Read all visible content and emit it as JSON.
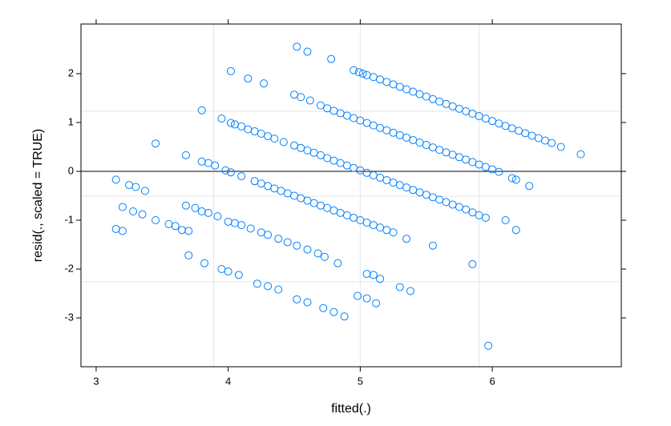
{
  "chart_data": {
    "type": "scatter",
    "xlabel": "fitted(.)",
    "ylabel": "resid(., scaled = TRUE)",
    "xlim": [
      2.885,
      6.977
    ],
    "ylim": [
      -4.0,
      3.016
    ],
    "xticks": [
      3,
      4,
      5,
      6
    ],
    "yticks": [
      -3,
      -2,
      -1,
      0,
      1,
      2
    ],
    "color": "#0080ff",
    "reference_line": 0,
    "grid_x": [
      3.89,
      5.0,
      5.9
    ],
    "grid_y": [
      1.23,
      -0.51,
      -2.26
    ],
    "x": [
      4.52,
      4.6,
      4.78,
      4.95,
      4.99,
      5.02,
      5.05,
      5.1,
      5.15,
      5.2,
      5.25,
      5.3,
      5.35,
      5.4,
      5.45,
      5.5,
      5.55,
      5.6,
      5.65,
      5.7,
      5.75,
      5.8,
      5.85,
      5.9,
      5.95,
      6.0,
      6.05,
      6.1,
      6.15,
      6.2,
      6.25,
      6.3,
      6.35,
      6.4,
      6.45,
      6.52,
      6.67,
      4.02,
      4.15,
      4.27,
      4.5,
      4.55,
      4.62,
      4.7,
      4.75,
      4.8,
      4.85,
      4.9,
      4.95,
      5.0,
      5.05,
      5.1,
      5.15,
      5.2,
      5.25,
      5.3,
      5.35,
      5.4,
      5.45,
      5.5,
      5.55,
      5.6,
      5.65,
      5.7,
      5.75,
      5.8,
      5.85,
      5.9,
      5.95,
      6.0,
      6.05,
      6.15,
      6.18,
      6.28,
      3.8,
      3.95,
      4.02,
      4.05,
      4.1,
      4.15,
      4.2,
      4.25,
      4.3,
      4.35,
      4.42,
      4.5,
      4.55,
      4.6,
      4.65,
      4.7,
      4.75,
      4.8,
      4.85,
      4.9,
      4.95,
      5.0,
      5.05,
      5.1,
      5.15,
      5.2,
      5.25,
      5.3,
      5.35,
      5.4,
      5.45,
      5.5,
      5.55,
      5.6,
      5.65,
      5.7,
      5.75,
      5.8,
      5.85,
      5.9,
      5.95,
      6.1,
      6.18,
      3.45,
      3.68,
      3.8,
      3.85,
      3.9,
      3.98,
      4.02,
      4.1,
      4.2,
      4.25,
      4.3,
      4.35,
      4.4,
      4.45,
      4.5,
      4.55,
      4.6,
      4.65,
      4.7,
      4.75,
      4.8,
      4.85,
      4.9,
      4.95,
      5.0,
      5.05,
      5.1,
      5.15,
      5.2,
      5.25,
      5.35,
      5.55,
      5.85,
      3.15,
      3.25,
      3.3,
      3.37,
      3.68,
      3.75,
      3.8,
      3.85,
      3.92,
      4.0,
      4.05,
      4.1,
      4.17,
      4.25,
      4.3,
      4.38,
      4.45,
      4.52,
      4.6,
      4.68,
      4.73,
      4.83,
      5.05,
      5.1,
      5.15,
      5.3,
      5.38,
      3.15,
      3.2,
      3.2,
      3.28,
      3.35,
      3.45,
      3.55,
      3.6,
      3.65,
      3.7,
      3.7,
      3.82,
      3.95,
      4.0,
      4.08,
      4.22,
      4.3,
      4.38,
      4.52,
      4.6,
      4.72,
      4.8,
      4.88,
      4.98,
      5.05,
      5.12,
      5.97
    ],
    "values": [
      2.55,
      2.45,
      2.3,
      2.07,
      2.03,
      2.0,
      1.97,
      1.93,
      1.88,
      1.83,
      1.78,
      1.73,
      1.68,
      1.63,
      1.58,
      1.53,
      1.48,
      1.43,
      1.38,
      1.33,
      1.28,
      1.23,
      1.18,
      1.13,
      1.08,
      1.03,
      0.98,
      0.93,
      0.88,
      0.83,
      0.78,
      0.73,
      0.68,
      0.63,
      0.58,
      0.5,
      0.35,
      2.05,
      1.9,
      1.8,
      1.57,
      1.52,
      1.45,
      1.35,
      1.29,
      1.24,
      1.19,
      1.14,
      1.09,
      1.04,
      0.99,
      0.94,
      0.89,
      0.84,
      0.79,
      0.74,
      0.69,
      0.64,
      0.59,
      0.54,
      0.49,
      0.44,
      0.39,
      0.34,
      0.29,
      0.24,
      0.19,
      0.14,
      0.09,
      0.04,
      -0.01,
      -0.14,
      -0.17,
      -0.3,
      1.25,
      1.08,
      0.99,
      0.96,
      0.92,
      0.86,
      0.82,
      0.77,
      0.72,
      0.67,
      0.6,
      0.53,
      0.48,
      0.43,
      0.38,
      0.33,
      0.27,
      0.22,
      0.17,
      0.12,
      0.07,
      0.02,
      -0.03,
      -0.08,
      -0.13,
      -0.18,
      -0.23,
      -0.28,
      -0.33,
      -0.38,
      -0.43,
      -0.48,
      -0.53,
      -0.58,
      -0.63,
      -0.68,
      -0.73,
      -0.78,
      -0.84,
      -0.9,
      -0.95,
      -1.0,
      -1.2,
      0.57,
      0.33,
      0.2,
      0.17,
      0.12,
      0.02,
      -0.02,
      -0.1,
      -0.2,
      -0.25,
      -0.3,
      -0.35,
      -0.4,
      -0.45,
      -0.5,
      -0.55,
      -0.6,
      -0.65,
      -0.7,
      -0.75,
      -0.8,
      -0.85,
      -0.9,
      -0.95,
      -1.0,
      -1.05,
      -1.1,
      -1.15,
      -1.2,
      -1.25,
      -1.38,
      -1.52,
      -1.9,
      -0.17,
      -0.28,
      -0.32,
      -0.4,
      -0.7,
      -0.75,
      -0.82,
      -0.85,
      -0.92,
      -1.03,
      -1.06,
      -1.1,
      -1.17,
      -1.25,
      -1.3,
      -1.38,
      -1.45,
      -1.52,
      -1.6,
      -1.68,
      -1.75,
      -1.88,
      -2.1,
      -2.12,
      -2.2,
      -2.37,
      -2.45,
      -1.18,
      -1.22,
      -0.73,
      -0.82,
      -0.88,
      -1.0,
      -1.08,
      -1.12,
      -1.2,
      -1.22,
      -1.72,
      -1.88,
      -2.0,
      -2.05,
      -2.12,
      -2.3,
      -2.35,
      -2.42,
      -2.62,
      -2.68,
      -2.8,
      -2.88,
      -2.97,
      -2.55,
      -2.6,
      -2.7,
      -3.57
    ]
  }
}
